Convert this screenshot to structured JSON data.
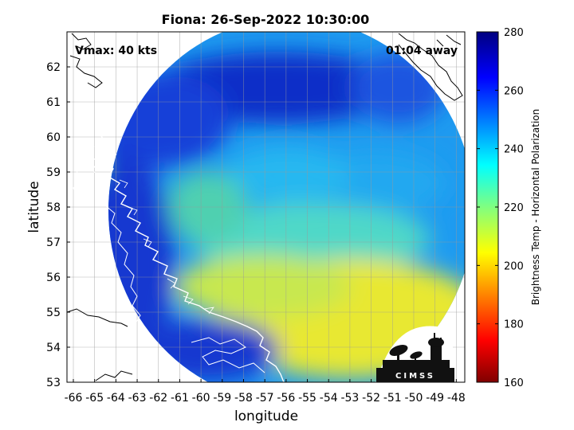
{
  "title": "Fiona: 26-Sep-2022 10:30:00",
  "annotations": {
    "vmax": "Vmax: 40 kts",
    "time_away": "01:04 away"
  },
  "axes": {
    "xlabel": "longitude",
    "ylabel": "latitude",
    "xlim": [
      -66.3,
      -47.6
    ],
    "ylim": [
      53,
      63
    ],
    "xticks": [
      -66,
      -65,
      -64,
      -63,
      -62,
      -61,
      -60,
      -59,
      -58,
      -57,
      -56,
      -55,
      -54,
      -53,
      -52,
      -51,
      -50,
      -49,
      -48
    ],
    "yticks": [
      53,
      54,
      55,
      56,
      57,
      58,
      59,
      60,
      61,
      62
    ],
    "grid": true
  },
  "colorbar": {
    "label": "Brightness Temp - Horizontal Polarization",
    "min": 160,
    "max": 280,
    "ticks": [
      160,
      180,
      200,
      220,
      240,
      260,
      280
    ],
    "colormap": "jet"
  },
  "swath": {
    "center_lon": -55.75,
    "center_lat": 57.9,
    "radius_lon": 8.6,
    "radius_lat": 5.5,
    "warm_region_color": "#e8e82a",
    "cold_region_color": "#1535d4"
  },
  "logo": {
    "text": "CIMSS"
  }
}
